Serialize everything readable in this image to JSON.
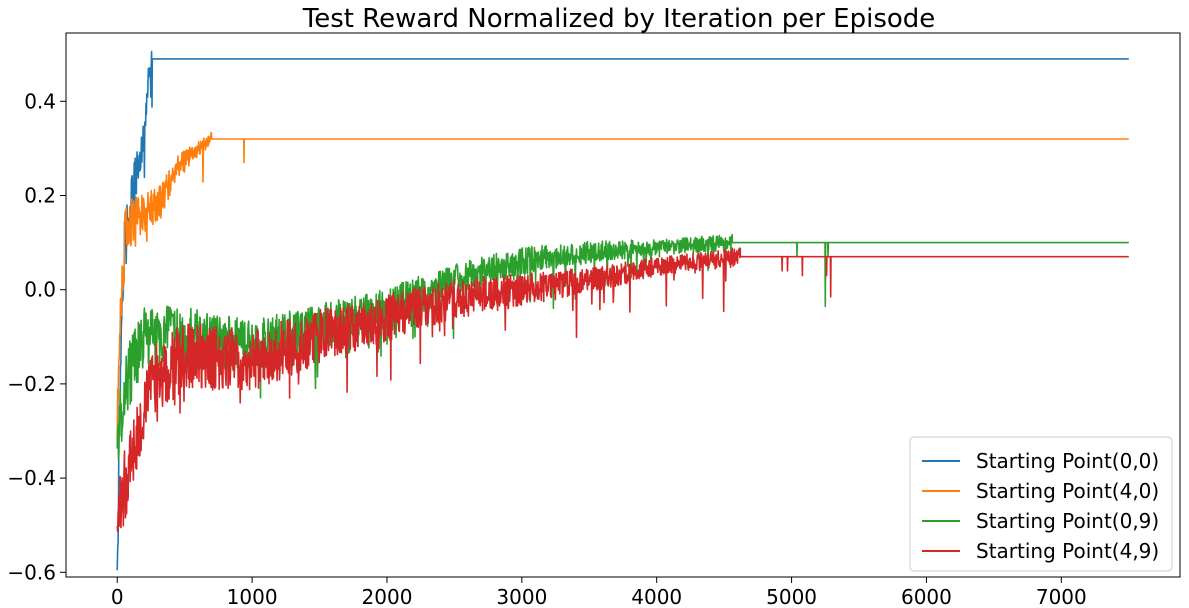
{
  "chart_data": {
    "type": "line",
    "title": "Test Reward Normalized by Iteration per Episode",
    "xlabel": "",
    "ylabel": "",
    "xlim": [
      -380,
      7880
    ],
    "ylim": [
      -0.61,
      0.545
    ],
    "xticks": [
      0,
      1000,
      2000,
      3000,
      4000,
      5000,
      6000,
      7000
    ],
    "xtick_labels": [
      "0",
      "1000",
      "2000",
      "3000",
      "4000",
      "5000",
      "6000",
      "7000"
    ],
    "yticks": [
      -0.6,
      -0.4,
      -0.2,
      0.0,
      0.2,
      0.4
    ],
    "ytick_labels": [
      "−0.6",
      "−0.4",
      "−0.2",
      "0.0",
      "0.2",
      "0.4"
    ],
    "grid": false,
    "legend": {
      "position": "bottom-right"
    },
    "x_end": 7500,
    "series": [
      {
        "name": "Starting Point(0,0)",
        "color": "#1f77b4",
        "settle_x": 260,
        "final_value": 0.49,
        "profile": [
          [
            0,
            -0.555
          ],
          [
            15,
            -0.3
          ],
          [
            40,
            0.05
          ],
          [
            80,
            0.15
          ],
          [
            120,
            0.22
          ],
          [
            160,
            0.26
          ],
          [
            200,
            0.33
          ],
          [
            230,
            0.45
          ],
          [
            260,
            0.49
          ]
        ],
        "noise": 0.09,
        "spikes": []
      },
      {
        "name": "Starting Point(4,0)",
        "color": "#ff7f0e",
        "settle_x": 700,
        "final_value": 0.32,
        "profile": [
          [
            0,
            -0.3
          ],
          [
            20,
            -0.05
          ],
          [
            60,
            0.12
          ],
          [
            150,
            0.16
          ],
          [
            300,
            0.18
          ],
          [
            450,
            0.26
          ],
          [
            600,
            0.3
          ],
          [
            700,
            0.32
          ]
        ],
        "noise": 0.06,
        "spikes": [
          [
            940,
            0.27
          ]
        ]
      },
      {
        "name": "Starting Point(0,9)",
        "color": "#2ca02c",
        "settle_x": 4560,
        "final_value": 0.1,
        "profile": [
          [
            0,
            -0.32
          ],
          [
            60,
            -0.2
          ],
          [
            200,
            -0.1
          ],
          [
            500,
            -0.1
          ],
          [
            1000,
            -0.12
          ],
          [
            1500,
            -0.08
          ],
          [
            2000,
            -0.04
          ],
          [
            2500,
            0.02
          ],
          [
            3000,
            0.06
          ],
          [
            3500,
            0.08
          ],
          [
            4000,
            0.09
          ],
          [
            4560,
            0.1
          ]
        ],
        "noise": 0.07,
        "spikes": [
          [
            4020,
            0.07
          ],
          [
            4410,
            0.08
          ],
          [
            4550,
            0.08
          ],
          [
            5040,
            0.07
          ],
          [
            5250,
            -0.035
          ],
          [
            5270,
            0.07
          ]
        ]
      },
      {
        "name": "Starting Point(4,9)",
        "color": "#d62728",
        "settle_x": 4620,
        "final_value": 0.07,
        "profile": [
          [
            0,
            -0.49
          ],
          [
            100,
            -0.35
          ],
          [
            250,
            -0.2
          ],
          [
            500,
            -0.14
          ],
          [
            1000,
            -0.15
          ],
          [
            1500,
            -0.1
          ],
          [
            2000,
            -0.06
          ],
          [
            2500,
            -0.02
          ],
          [
            3000,
            0.0
          ],
          [
            3500,
            0.02
          ],
          [
            4000,
            0.05
          ],
          [
            4620,
            0.07
          ]
        ],
        "noise": 0.08,
        "spikes": [
          [
            4930,
            0.04
          ],
          [
            4970,
            0.04
          ],
          [
            5080,
            0.03
          ],
          [
            5260,
            0.03
          ],
          [
            5290,
            -0.015
          ],
          [
            5300,
            0.07
          ]
        ]
      }
    ]
  }
}
